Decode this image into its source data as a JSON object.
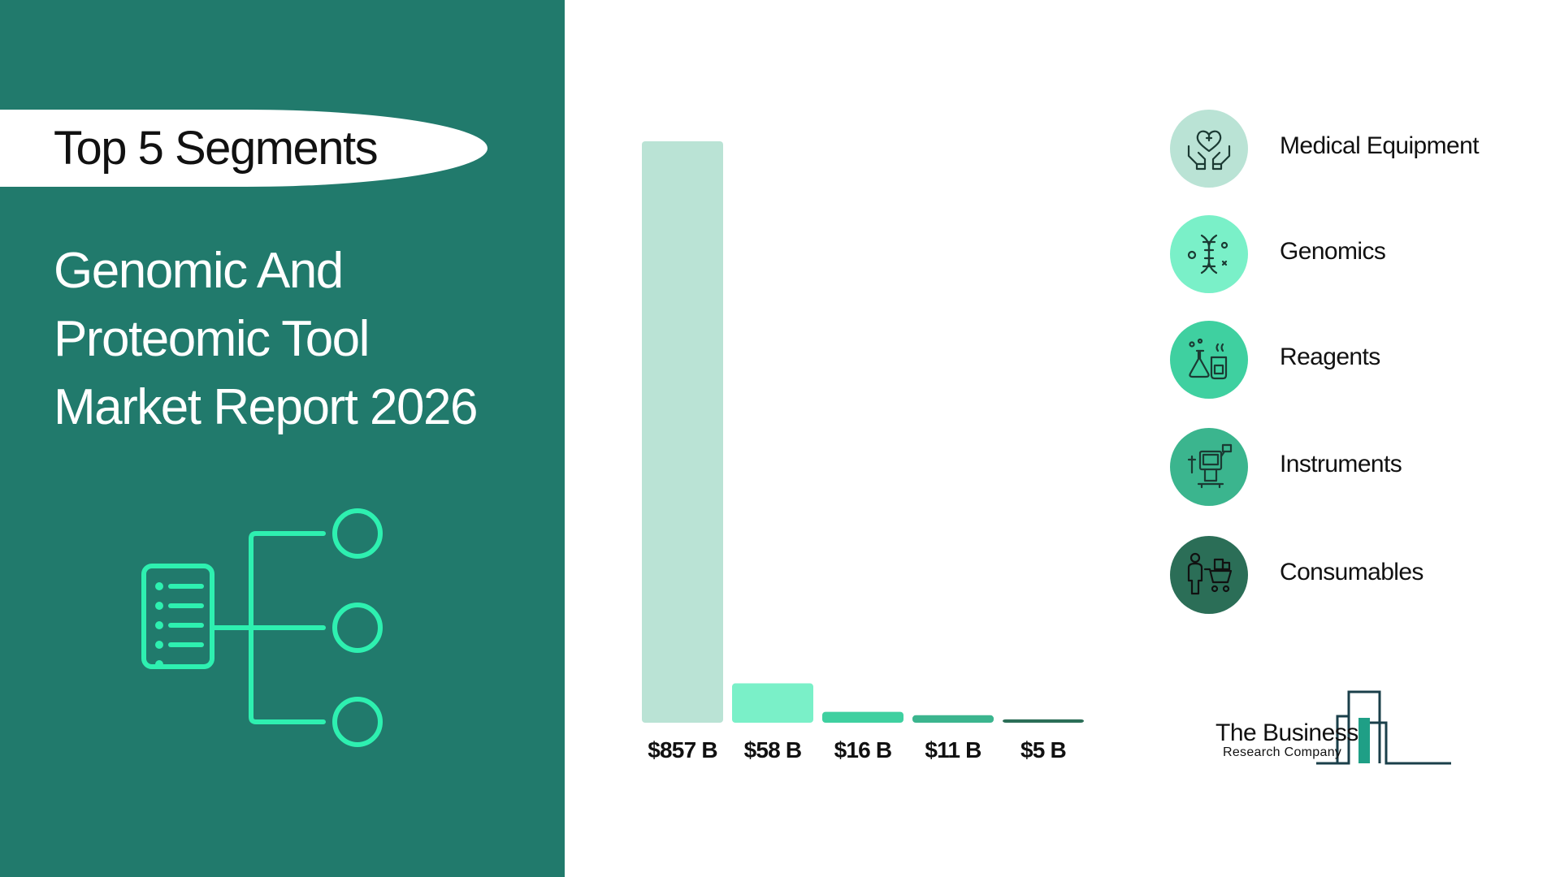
{
  "header": {
    "pill_title": "Top 5 Segments",
    "report_title_lines": [
      "Genomic And",
      "Proteomic Tool",
      "Market Report 2026"
    ]
  },
  "chart_data": {
    "type": "bar",
    "categories": [
      "Medical Equipment",
      "Genomics",
      "Reagents",
      "Instruments",
      "Consumables"
    ],
    "values": [
      857,
      58,
      16,
      11,
      5
    ],
    "data_labels": [
      "$857 B",
      "$58 B",
      "$16 B",
      "$11 B",
      "$5 B"
    ],
    "unit": "$ B",
    "colors": [
      "#bae3d5",
      "#7af0c8",
      "#3fd0a0",
      "#3bb58e",
      "#2b6e57"
    ],
    "ylim": [
      0,
      857
    ],
    "grid": false,
    "legend_placement": "right"
  },
  "legend": {
    "items": [
      {
        "label": "Medical Equipment",
        "icon": "heart-in-hands-icon",
        "color": "#bae3d5"
      },
      {
        "label": "Genomics",
        "icon": "dna-icon",
        "color": "#7af0c8"
      },
      {
        "label": "Reagents",
        "icon": "lab-flask-icon",
        "color": "#3fd0a0"
      },
      {
        "label": "Instruments",
        "icon": "medical-instrument-icon",
        "color": "#3bb58e"
      },
      {
        "label": "Consumables",
        "icon": "shopping-cart-icon",
        "color": "#2b6e57"
      }
    ]
  },
  "logo": {
    "line1": "The Business",
    "line2": "Research Company"
  },
  "colors": {
    "panel": "#217a6c",
    "accent": "#2ef0b0"
  }
}
